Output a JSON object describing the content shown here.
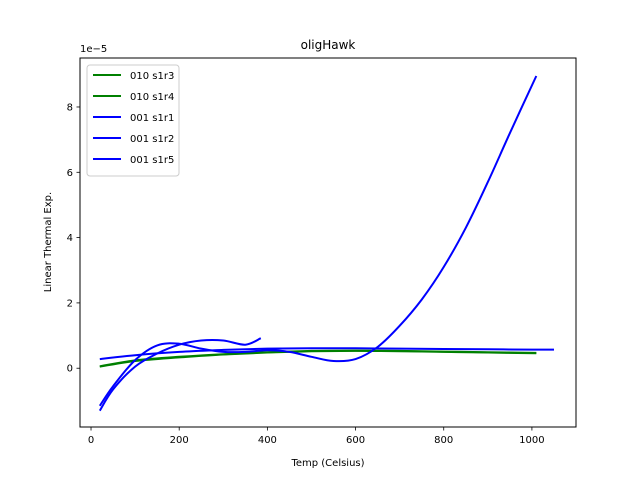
{
  "chart_data": {
    "type": "line",
    "title": "oligHawk",
    "xlabel": "Temp (Celsius)",
    "ylabel": "Linear Thermal Exp.",
    "y_offset_label": "1e−5",
    "xlim": [
      -25,
      1100
    ],
    "ylim": [
      -1.8,
      9.5
    ],
    "xticks": [
      0,
      200,
      400,
      600,
      800,
      1000
    ],
    "xtick_labels": [
      "0",
      "200",
      "400",
      "600",
      "800",
      "1000"
    ],
    "yticks": [
      0,
      2,
      4,
      6,
      8
    ],
    "ytick_labels": [
      "0",
      "2",
      "4",
      "6",
      "8"
    ],
    "grid": false,
    "legend_position": "top-left",
    "series": [
      {
        "name": "010 s1r3",
        "color": "#008000",
        "x": [
          20,
          100,
          200,
          300,
          400,
          500,
          600,
          700,
          800,
          900,
          1010
        ],
        "y": [
          0.05,
          0.22,
          0.33,
          0.42,
          0.48,
          0.52,
          0.53,
          0.52,
          0.5,
          0.48,
          0.46
        ]
      },
      {
        "name": "010 s1r4",
        "color": "#008000",
        "x": [
          20,
          100,
          200,
          300,
          400,
          500,
          600,
          700,
          800,
          900,
          1010
        ],
        "y": [
          0.06,
          0.24,
          0.35,
          0.43,
          0.49,
          0.53,
          0.54,
          0.53,
          0.51,
          0.49,
          0.47
        ]
      },
      {
        "name": "001 s1r1",
        "color": "#0000ff",
        "x": [
          20,
          50,
          100,
          150,
          200,
          250,
          300,
          350,
          400,
          450,
          500,
          550,
          600,
          650,
          700,
          750,
          800,
          850,
          900,
          950,
          1010
        ],
        "y": [
          -1.15,
          -0.55,
          0.25,
          0.7,
          0.75,
          0.6,
          0.5,
          0.5,
          0.55,
          0.5,
          0.35,
          0.22,
          0.28,
          0.65,
          1.3,
          2.1,
          3.1,
          4.3,
          5.7,
          7.2,
          8.95
        ]
      },
      {
        "name": "001 s1r2",
        "color": "#0000ff",
        "x": [
          20,
          50,
          100,
          150,
          200,
          250,
          300,
          350,
          385
        ],
        "y": [
          -1.3,
          -0.65,
          0.05,
          0.45,
          0.72,
          0.85,
          0.85,
          0.72,
          0.92
        ]
      },
      {
        "name": "001 s1r5",
        "color": "#0000ff",
        "x": [
          20,
          100,
          200,
          300,
          400,
          500,
          600,
          700,
          800,
          900,
          1000,
          1050
        ],
        "y": [
          0.28,
          0.4,
          0.5,
          0.56,
          0.6,
          0.61,
          0.61,
          0.6,
          0.59,
          0.58,
          0.57,
          0.57
        ]
      }
    ]
  }
}
